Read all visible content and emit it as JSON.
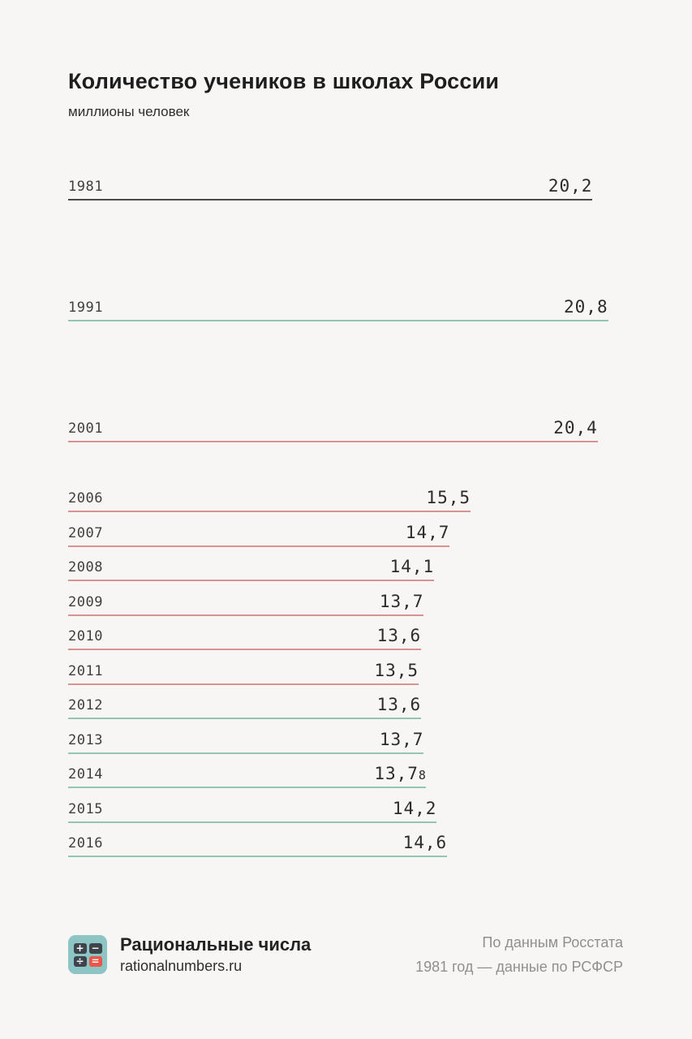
{
  "title": "Количество учеников в школах России",
  "subtitle": "миллионы человек",
  "chart_data": {
    "type": "bar",
    "orientation": "horizontal",
    "title": "Количество учеников в школах России",
    "unit_label": "миллионы человек",
    "xlim": [
      0,
      20.8
    ],
    "grid": false,
    "legend": "none",
    "categories": [
      "1981",
      "1991",
      "2001",
      "2006",
      "2007",
      "2008",
      "2009",
      "2010",
      "2011",
      "2012",
      "2013",
      "2014",
      "2015",
      "2016"
    ],
    "values": [
      20.2,
      20.8,
      20.4,
      15.5,
      14.7,
      14.1,
      13.7,
      13.6,
      13.5,
      13.6,
      13.7,
      13.78,
      14.2,
      14.6
    ],
    "rows": [
      {
        "year": 1981,
        "label": "1981",
        "value": 20.2,
        "display": "20,2",
        "trend": "neutral"
      },
      {
        "year": 1991,
        "label": "1991",
        "value": 20.8,
        "display": "20,8",
        "trend": "up"
      },
      {
        "year": 2001,
        "label": "2001",
        "value": 20.4,
        "display": "20,4",
        "trend": "down"
      },
      {
        "year": 2006,
        "label": "2006",
        "value": 15.5,
        "display": "15,5",
        "trend": "down"
      },
      {
        "year": 2007,
        "label": "2007",
        "value": 14.7,
        "display": "14,7",
        "trend": "down"
      },
      {
        "year": 2008,
        "label": "2008",
        "value": 14.1,
        "display": "14,1",
        "trend": "down"
      },
      {
        "year": 2009,
        "label": "2009",
        "value": 13.7,
        "display": "13,7",
        "trend": "down"
      },
      {
        "year": 2010,
        "label": "2010",
        "value": 13.6,
        "display": "13,6",
        "trend": "down"
      },
      {
        "year": 2011,
        "label": "2011",
        "value": 13.5,
        "display": "13,5",
        "trend": "down"
      },
      {
        "year": 2012,
        "label": "2012",
        "value": 13.6,
        "display": "13,6",
        "trend": "up"
      },
      {
        "year": 2013,
        "label": "2013",
        "value": 13.7,
        "display": "13,7",
        "trend": "up"
      },
      {
        "year": 2014,
        "label": "2014",
        "value": 13.78,
        "display": "13,7",
        "display_small": "8",
        "trend": "up"
      },
      {
        "year": 2015,
        "label": "2015",
        "value": 14.2,
        "display": "14,2",
        "trend": "up"
      },
      {
        "year": 2016,
        "label": "2016",
        "value": 14.6,
        "display": "14,6",
        "trend": "up"
      }
    ],
    "colors": {
      "neutral": "#4a4a4a",
      "up": "#93c6b6",
      "down": "#d89292"
    }
  },
  "footer": {
    "brand_name": "Рациональные числа",
    "brand_url": "rationalnumbers.ru",
    "source_line1": "По данным Росстата",
    "source_line2": "1981 год — данные по РСФСР",
    "logo": {
      "symbols": [
        "+",
        "−",
        "÷",
        "="
      ],
      "bg_color": "#8cc5c3",
      "tile_color": "#3d444b",
      "accent_tile_color": "#e8574a"
    }
  }
}
